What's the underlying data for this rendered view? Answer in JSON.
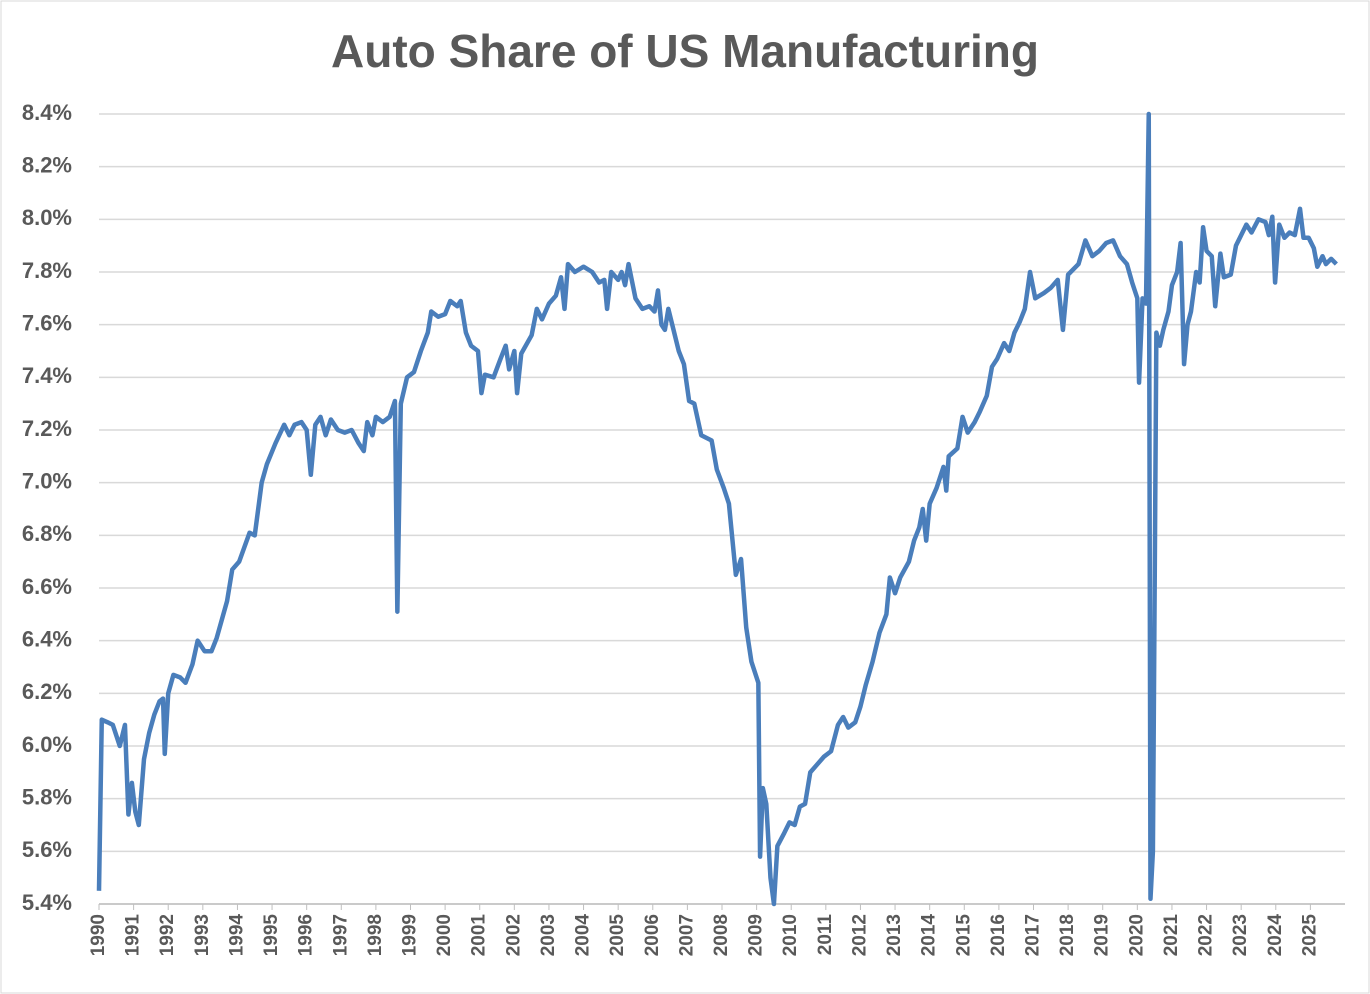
{
  "chart_data": {
    "type": "line",
    "title": "Auto Share of US Manufacturing",
    "color": "#4a7ebb",
    "grid": true,
    "xlim": [
      1990,
      2026
    ],
    "xticks": [
      1990,
      1991,
      1992,
      1993,
      1994,
      1995,
      1996,
      1997,
      1998,
      1999,
      2000,
      2001,
      2002,
      2003,
      2004,
      2005,
      2006,
      2007,
      2008,
      2009,
      2010,
      2011,
      2012,
      2013,
      2014,
      2015,
      2016,
      2017,
      2018,
      2019,
      2020,
      2021,
      2022,
      2023,
      2024,
      2025
    ],
    "ylim": [
      5.4,
      8.4
    ],
    "yticks": [
      {
        "value": 5.4,
        "label": "5.4%"
      },
      {
        "value": 5.6,
        "label": "5.6%"
      },
      {
        "value": 5.8,
        "label": "5.8%"
      },
      {
        "value": 6.0,
        "label": "6.0%"
      },
      {
        "value": 6.2,
        "label": "6.2%"
      },
      {
        "value": 6.4,
        "label": "6.4%"
      },
      {
        "value": 6.6,
        "label": "6.6%"
      },
      {
        "value": 6.8,
        "label": "6.8%"
      },
      {
        "value": 7.0,
        "label": "7.0%"
      },
      {
        "value": 7.2,
        "label": "7.2%"
      },
      {
        "value": 7.4,
        "label": "7.4%"
      },
      {
        "value": 7.6,
        "label": "7.6%"
      },
      {
        "value": 7.8,
        "label": "7.8%"
      },
      {
        "value": 8.0,
        "label": "8.0%"
      },
      {
        "value": 8.2,
        "label": "8.2%"
      },
      {
        "value": 8.4,
        "label": "8.4%"
      }
    ],
    "x": [
      1990.0,
      1990.08,
      1990.25,
      1990.4,
      1990.6,
      1990.75,
      1990.85,
      1990.95,
      1991.05,
      1991.15,
      1991.3,
      1991.45,
      1991.6,
      1991.75,
      1991.85,
      1991.9,
      1992.0,
      1992.15,
      1992.35,
      1992.5,
      1992.7,
      1992.85,
      1993.05,
      1993.25,
      1993.4,
      1993.7,
      1993.85,
      1994.05,
      1994.35,
      1994.5,
      1994.7,
      1994.85,
      1995.1,
      1995.35,
      1995.5,
      1995.65,
      1995.85,
      1996.0,
      1996.12,
      1996.25,
      1996.4,
      1996.55,
      1996.7,
      1996.9,
      1997.1,
      1997.3,
      1997.5,
      1997.65,
      1997.75,
      1997.9,
      1998.0,
      1998.2,
      1998.4,
      1998.55,
      1998.62,
      1998.72,
      1998.9,
      1999.1,
      1999.3,
      1999.5,
      1999.6,
      1999.8,
      2000.0,
      2000.15,
      2000.35,
      2000.45,
      2000.6,
      2000.75,
      2000.95,
      2001.05,
      2001.15,
      2001.4,
      2001.6,
      2001.75,
      2001.85,
      2002.0,
      2002.08,
      2002.2,
      2002.5,
      2002.65,
      2002.8,
      2003.0,
      2003.2,
      2003.35,
      2003.45,
      2003.55,
      2003.75,
      2004.0,
      2004.25,
      2004.45,
      2004.6,
      2004.68,
      2004.8,
      2005.0,
      2005.1,
      2005.2,
      2005.3,
      2005.5,
      2005.7,
      2005.9,
      2006.05,
      2006.15,
      2006.25,
      2006.35,
      2006.45,
      2006.6,
      2006.75,
      2006.9,
      2007.05,
      2007.2,
      2007.4,
      2007.7,
      2007.85,
      2008.05,
      2008.2,
      2008.4,
      2008.55,
      2008.7,
      2008.85,
      2009.05,
      2009.1,
      2009.18,
      2009.28,
      2009.4,
      2009.5,
      2009.6,
      2009.8,
      2009.95,
      2010.1,
      2010.25,
      2010.4,
      2010.55,
      2010.75,
      2010.95,
      2011.15,
      2011.35,
      2011.5,
      2011.65,
      2011.85,
      2012.0,
      2012.15,
      2012.35,
      2012.55,
      2012.75,
      2012.85,
      2013.0,
      2013.15,
      2013.4,
      2013.55,
      2013.7,
      2013.8,
      2013.9,
      2014.0,
      2014.2,
      2014.4,
      2014.48,
      2014.55,
      2014.8,
      2014.95,
      2015.1,
      2015.3,
      2015.45,
      2015.65,
      2015.8,
      2015.95,
      2016.15,
      2016.3,
      2016.45,
      2016.6,
      2016.75,
      2016.9,
      2017.05,
      2017.3,
      2017.5,
      2017.7,
      2017.85,
      2018.0,
      2018.3,
      2018.5,
      2018.7,
      2018.9,
      2019.1,
      2019.3,
      2019.5,
      2019.7,
      2019.85,
      2020.0,
      2020.05,
      2020.15,
      2020.25,
      2020.33,
      2020.38,
      2020.45,
      2020.55,
      2020.65,
      2020.75,
      2020.9,
      2021.0,
      2021.15,
      2021.25,
      2021.35,
      2021.45,
      2021.55,
      2021.7,
      2021.8,
      2021.9,
      2022.0,
      2022.15,
      2022.25,
      2022.4,
      2022.5,
      2022.7,
      2022.85,
      2023.0,
      2023.15,
      2023.3,
      2023.5,
      2023.7,
      2023.8,
      2023.9,
      2023.98,
      2024.1,
      2024.25,
      2024.4,
      2024.55,
      2024.7,
      2024.8,
      2024.95,
      2025.1,
      2025.2,
      2025.35,
      2025.45,
      2025.6,
      2025.75
    ],
    "values": [
      5.45,
      6.1,
      6.09,
      6.08,
      6.0,
      6.08,
      5.74,
      5.86,
      5.75,
      5.7,
      5.95,
      6.05,
      6.12,
      6.17,
      6.18,
      5.97,
      6.2,
      6.27,
      6.26,
      6.24,
      6.31,
      6.4,
      6.36,
      6.36,
      6.41,
      6.55,
      6.67,
      6.7,
      6.81,
      6.8,
      7.0,
      7.07,
      7.15,
      7.22,
      7.18,
      7.22,
      7.23,
      7.2,
      7.03,
      7.22,
      7.25,
      7.18,
      7.24,
      7.2,
      7.19,
      7.2,
      7.15,
      7.12,
      7.23,
      7.18,
      7.25,
      7.23,
      7.25,
      7.31,
      6.51,
      7.3,
      7.4,
      7.42,
      7.5,
      7.57,
      7.65,
      7.63,
      7.64,
      7.69,
      7.67,
      7.69,
      7.57,
      7.52,
      7.5,
      7.34,
      7.41,
      7.4,
      7.47,
      7.52,
      7.43,
      7.5,
      7.34,
      7.49,
      7.56,
      7.66,
      7.62,
      7.68,
      7.71,
      7.78,
      7.66,
      7.83,
      7.8,
      7.82,
      7.8,
      7.76,
      7.77,
      7.66,
      7.8,
      7.77,
      7.8,
      7.75,
      7.83,
      7.7,
      7.66,
      7.67,
      7.65,
      7.73,
      7.6,
      7.58,
      7.66,
      7.58,
      7.5,
      7.45,
      7.31,
      7.3,
      7.18,
      7.16,
      7.05,
      6.98,
      6.92,
      6.65,
      6.71,
      6.45,
      6.32,
      6.24,
      5.58,
      5.84,
      5.78,
      5.5,
      5.4,
      5.62,
      5.67,
      5.71,
      5.7,
      5.77,
      5.78,
      5.9,
      5.93,
      5.96,
      5.98,
      6.08,
      6.11,
      6.07,
      6.09,
      6.15,
      6.23,
      6.32,
      6.43,
      6.5,
      6.64,
      6.58,
      6.64,
      6.7,
      6.78,
      6.83,
      6.9,
      6.78,
      6.92,
      6.98,
      7.06,
      6.97,
      7.1,
      7.13,
      7.25,
      7.19,
      7.23,
      7.27,
      7.33,
      7.44,
      7.47,
      7.53,
      7.5,
      7.57,
      7.61,
      7.66,
      7.8,
      7.7,
      7.72,
      7.74,
      7.77,
      7.58,
      7.79,
      7.83,
      7.92,
      7.86,
      7.88,
      7.91,
      7.92,
      7.86,
      7.83,
      7.76,
      7.7,
      7.38,
      7.7,
      7.68,
      8.4,
      5.42,
      5.6,
      7.57,
      7.52,
      7.58,
      7.65,
      7.75,
      7.8,
      7.91,
      7.45,
      7.6,
      7.65,
      7.8,
      7.76,
      7.97,
      7.88,
      7.86,
      7.67,
      7.87,
      7.78,
      7.79,
      7.9,
      7.94,
      7.98,
      7.95,
      8.0,
      7.99,
      7.94,
      8.01,
      7.76,
      7.98,
      7.93,
      7.95,
      7.94,
      8.04,
      7.93,
      7.93,
      7.89,
      7.82,
      7.86,
      7.83,
      7.85,
      7.83
    ]
  }
}
